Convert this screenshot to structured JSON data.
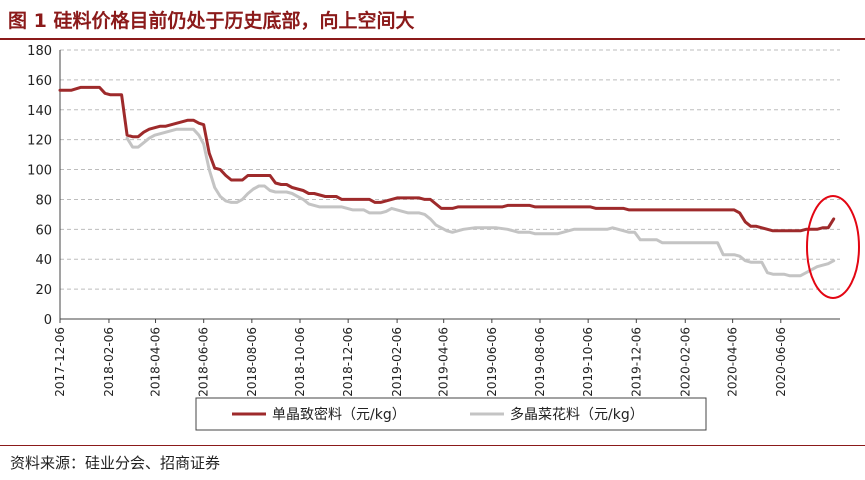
{
  "page": {
    "title": "图 1 硅料价格目前仍处于历史底部，向上空间大",
    "source": "资料来源：硅业分会、招商证券"
  },
  "colors": {
    "accent": "#8B1A1A",
    "mono": "#9E2A2B",
    "poly": "#C4C4C4",
    "highlight": "#E30613"
  },
  "chart_data": {
    "type": "line",
    "ylim": [
      0,
      180
    ],
    "yticks": [
      0,
      20,
      40,
      60,
      80,
      100,
      120,
      140,
      160,
      180
    ],
    "xlim": [
      "2017-12-06",
      "2020-08-20"
    ],
    "xticks": [
      "2017-12-06",
      "2018-02-06",
      "2018-04-06",
      "2018-06-06",
      "2018-08-06",
      "2018-10-06",
      "2018-12-06",
      "2019-02-06",
      "2019-04-06",
      "2019-06-06",
      "2019-08-06",
      "2019-10-06",
      "2019-12-06",
      "2020-02-06",
      "2020-04-06",
      "2020-06-06"
    ],
    "grid": "horizontal-dashed",
    "legend_position": "bottom",
    "series": [
      {
        "name": "单晶致密料（元/kg）",
        "points": [
          [
            "2017-12-06",
            153
          ],
          [
            "2017-12-20",
            153
          ],
          [
            "2018-01-01",
            155
          ],
          [
            "2018-01-15",
            155
          ],
          [
            "2018-01-25",
            155
          ],
          [
            "2018-02-01",
            151
          ],
          [
            "2018-02-08",
            150
          ],
          [
            "2018-02-15",
            150
          ],
          [
            "2018-02-22",
            150
          ],
          [
            "2018-03-01",
            123
          ],
          [
            "2018-03-08",
            122
          ],
          [
            "2018-03-15",
            122
          ],
          [
            "2018-03-22",
            125
          ],
          [
            "2018-03-29",
            127
          ],
          [
            "2018-04-05",
            128
          ],
          [
            "2018-04-12",
            129
          ],
          [
            "2018-04-19",
            129
          ],
          [
            "2018-04-26",
            130
          ],
          [
            "2018-05-03",
            131
          ],
          [
            "2018-05-10",
            132
          ],
          [
            "2018-05-17",
            133
          ],
          [
            "2018-05-24",
            133
          ],
          [
            "2018-05-31",
            131
          ],
          [
            "2018-06-06",
            130
          ],
          [
            "2018-06-13",
            111
          ],
          [
            "2018-06-20",
            101
          ],
          [
            "2018-06-27",
            100
          ],
          [
            "2018-07-04",
            96
          ],
          [
            "2018-07-11",
            93
          ],
          [
            "2018-07-18",
            93
          ],
          [
            "2018-07-25",
            93
          ],
          [
            "2018-08-01",
            96
          ],
          [
            "2018-08-08",
            96
          ],
          [
            "2018-08-15",
            96
          ],
          [
            "2018-08-22",
            96
          ],
          [
            "2018-08-29",
            96
          ],
          [
            "2018-09-05",
            91
          ],
          [
            "2018-09-12",
            90
          ],
          [
            "2018-09-19",
            90
          ],
          [
            "2018-09-26",
            88
          ],
          [
            "2018-10-03",
            87
          ],
          [
            "2018-10-10",
            86
          ],
          [
            "2018-10-17",
            84
          ],
          [
            "2018-10-24",
            84
          ],
          [
            "2018-10-31",
            83
          ],
          [
            "2018-11-07",
            82
          ],
          [
            "2018-11-14",
            82
          ],
          [
            "2018-11-21",
            82
          ],
          [
            "2018-11-28",
            80
          ],
          [
            "2018-12-05",
            80
          ],
          [
            "2018-12-19",
            80
          ],
          [
            "2019-01-02",
            80
          ],
          [
            "2019-01-09",
            78
          ],
          [
            "2019-01-16",
            78
          ],
          [
            "2019-01-23",
            79
          ],
          [
            "2019-01-30",
            80
          ],
          [
            "2019-02-06",
            81
          ],
          [
            "2019-02-13",
            81
          ],
          [
            "2019-02-20",
            81
          ],
          [
            "2019-02-27",
            81
          ],
          [
            "2019-03-06",
            81
          ],
          [
            "2019-03-13",
            80
          ],
          [
            "2019-03-20",
            80
          ],
          [
            "2019-03-27",
            77
          ],
          [
            "2019-04-03",
            74
          ],
          [
            "2019-04-10",
            74
          ],
          [
            "2019-04-17",
            74
          ],
          [
            "2019-04-24",
            75
          ],
          [
            "2019-05-15",
            75
          ],
          [
            "2019-06-12",
            75
          ],
          [
            "2019-06-19",
            75
          ],
          [
            "2019-06-26",
            76
          ],
          [
            "2019-07-10",
            76
          ],
          [
            "2019-07-24",
            76
          ],
          [
            "2019-07-31",
            75
          ],
          [
            "2019-08-28",
            75
          ],
          [
            "2019-09-25",
            75
          ],
          [
            "2019-10-09",
            75
          ],
          [
            "2019-10-16",
            74
          ],
          [
            "2019-11-06",
            74
          ],
          [
            "2019-11-20",
            74
          ],
          [
            "2019-11-27",
            73
          ],
          [
            "2019-12-25",
            73
          ],
          [
            "2020-01-22",
            73
          ],
          [
            "2020-02-19",
            73
          ],
          [
            "2020-03-18",
            73
          ],
          [
            "2020-04-01",
            73
          ],
          [
            "2020-04-08",
            73
          ],
          [
            "2020-04-15",
            71
          ],
          [
            "2020-04-22",
            65
          ],
          [
            "2020-04-29",
            62
          ],
          [
            "2020-05-06",
            62
          ],
          [
            "2020-05-13",
            61
          ],
          [
            "2020-05-20",
            60
          ],
          [
            "2020-05-27",
            59
          ],
          [
            "2020-06-03",
            59
          ],
          [
            "2020-06-10",
            59
          ],
          [
            "2020-06-17",
            59
          ],
          [
            "2020-06-24",
            59
          ],
          [
            "2020-07-01",
            59
          ],
          [
            "2020-07-08",
            60
          ],
          [
            "2020-07-15",
            60
          ],
          [
            "2020-07-22",
            60
          ],
          [
            "2020-07-29",
            61
          ],
          [
            "2020-08-05",
            61
          ],
          [
            "2020-08-12",
            67
          ]
        ]
      },
      {
        "name": "多晶菜花料（元/kg）",
        "points": [
          [
            "2018-03-01",
            121
          ],
          [
            "2018-03-08",
            115
          ],
          [
            "2018-03-15",
            115
          ],
          [
            "2018-03-22",
            118
          ],
          [
            "2018-03-29",
            121
          ],
          [
            "2018-04-05",
            123
          ],
          [
            "2018-04-12",
            124
          ],
          [
            "2018-04-19",
            125
          ],
          [
            "2018-04-26",
            126
          ],
          [
            "2018-05-03",
            127
          ],
          [
            "2018-05-10",
            127
          ],
          [
            "2018-05-17",
            127
          ],
          [
            "2018-05-24",
            127
          ],
          [
            "2018-05-31",
            123
          ],
          [
            "2018-06-06",
            117
          ],
          [
            "2018-06-13",
            100
          ],
          [
            "2018-06-20",
            88
          ],
          [
            "2018-06-27",
            82
          ],
          [
            "2018-07-04",
            79
          ],
          [
            "2018-07-11",
            78
          ],
          [
            "2018-07-18",
            78
          ],
          [
            "2018-07-25",
            80
          ],
          [
            "2018-08-01",
            84
          ],
          [
            "2018-08-08",
            87
          ],
          [
            "2018-08-15",
            89
          ],
          [
            "2018-08-22",
            89
          ],
          [
            "2018-08-29",
            86
          ],
          [
            "2018-09-05",
            85
          ],
          [
            "2018-09-12",
            85
          ],
          [
            "2018-09-19",
            85
          ],
          [
            "2018-09-26",
            84
          ],
          [
            "2018-10-03",
            82
          ],
          [
            "2018-10-10",
            80
          ],
          [
            "2018-10-17",
            77
          ],
          [
            "2018-10-24",
            76
          ],
          [
            "2018-10-31",
            75
          ],
          [
            "2018-11-07",
            75
          ],
          [
            "2018-11-28",
            75
          ],
          [
            "2018-12-05",
            74
          ],
          [
            "2018-12-12",
            73
          ],
          [
            "2018-12-19",
            73
          ],
          [
            "2018-12-26",
            73
          ],
          [
            "2019-01-02",
            71
          ],
          [
            "2019-01-16",
            71
          ],
          [
            "2019-01-23",
            72
          ],
          [
            "2019-01-30",
            74
          ],
          [
            "2019-02-06",
            73
          ],
          [
            "2019-02-13",
            72
          ],
          [
            "2019-02-20",
            71
          ],
          [
            "2019-03-06",
            71
          ],
          [
            "2019-03-13",
            70
          ],
          [
            "2019-03-20",
            67
          ],
          [
            "2019-03-27",
            63
          ],
          [
            "2019-04-03",
            61
          ],
          [
            "2019-04-10",
            59
          ],
          [
            "2019-04-17",
            58
          ],
          [
            "2019-04-24",
            59
          ],
          [
            "2019-05-01",
            60
          ],
          [
            "2019-05-15",
            61
          ],
          [
            "2019-06-12",
            61
          ],
          [
            "2019-06-26",
            60
          ],
          [
            "2019-07-03",
            59
          ],
          [
            "2019-07-10",
            58
          ],
          [
            "2019-07-24",
            58
          ],
          [
            "2019-07-31",
            57
          ],
          [
            "2019-08-28",
            57
          ],
          [
            "2019-09-04",
            58
          ],
          [
            "2019-09-11",
            59
          ],
          [
            "2019-09-18",
            60
          ],
          [
            "2019-10-16",
            60
          ],
          [
            "2019-10-30",
            60
          ],
          [
            "2019-11-06",
            61
          ],
          [
            "2019-11-13",
            60
          ],
          [
            "2019-11-20",
            59
          ],
          [
            "2019-11-27",
            58
          ],
          [
            "2019-12-04",
            58
          ],
          [
            "2019-12-11",
            53
          ],
          [
            "2019-12-18",
            53
          ],
          [
            "2019-12-25",
            53
          ],
          [
            "2020-01-01",
            53
          ],
          [
            "2020-01-08",
            51
          ],
          [
            "2020-01-15",
            51
          ],
          [
            "2020-02-19",
            51
          ],
          [
            "2020-03-04",
            51
          ],
          [
            "2020-03-18",
            51
          ],
          [
            "2020-03-25",
            43
          ],
          [
            "2020-04-01",
            43
          ],
          [
            "2020-04-08",
            43
          ],
          [
            "2020-04-15",
            42
          ],
          [
            "2020-04-22",
            39
          ],
          [
            "2020-04-29",
            38
          ],
          [
            "2020-05-06",
            38
          ],
          [
            "2020-05-13",
            38
          ],
          [
            "2020-05-20",
            31
          ],
          [
            "2020-05-27",
            30
          ],
          [
            "2020-06-03",
            30
          ],
          [
            "2020-06-10",
            30
          ],
          [
            "2020-06-17",
            29
          ],
          [
            "2020-06-24",
            29
          ],
          [
            "2020-07-01",
            29
          ],
          [
            "2020-07-08",
            31
          ],
          [
            "2020-07-15",
            33
          ],
          [
            "2020-07-22",
            35
          ],
          [
            "2020-07-29",
            36
          ],
          [
            "2020-08-05",
            37
          ],
          [
            "2020-08-12",
            39
          ]
        ]
      }
    ]
  }
}
